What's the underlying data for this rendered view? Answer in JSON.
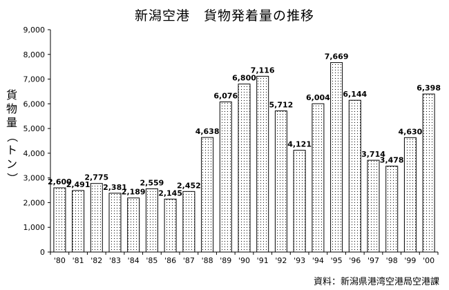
{
  "chart_data": {
    "type": "bar",
    "title": "新潟空港　貨物発着量の推移",
    "ylabel": "貨物量（トン）",
    "ylim": [
      0,
      9000
    ],
    "yticks": [
      "0",
      "1,000",
      "2,000",
      "3,000",
      "4,000",
      "5,000",
      "6,000",
      "7,000",
      "8,000",
      "9,000"
    ],
    "ytick_values": [
      0,
      1000,
      2000,
      3000,
      4000,
      5000,
      6000,
      7000,
      8000,
      9000
    ],
    "grid": false,
    "legend": "none",
    "categories": [
      "'80",
      "'81",
      "'82",
      "'83",
      "'84",
      "'85",
      "'86",
      "'87",
      "'88",
      "'89",
      "'90",
      "'91",
      "'92",
      "'93",
      "'94",
      "'95",
      "'96",
      "'97",
      "'98",
      "'99",
      "'00"
    ],
    "values": [
      2600,
      2491,
      2775,
      2381,
      2189,
      2559,
      2145,
      2452,
      4638,
      6076,
      6800,
      7116,
      5712,
      4121,
      6004,
      7669,
      6144,
      3714,
      3478,
      4630,
      6398
    ],
    "data_labels": [
      "2,600",
      "2,491",
      "2,775",
      "2,381",
      "2,189",
      "2,559",
      "2,145",
      "2,452",
      "4,638",
      "6,076",
      "6,800",
      "7,116",
      "5,712",
      "4,121",
      "6,004",
      "7,669",
      "6,144",
      "3,714",
      "3,478",
      "4,630",
      "6,398"
    ],
    "source": "資料：新潟県港湾空港局空港課",
    "colors": {
      "bar_fill": "#ffffff",
      "bar_dots": "#000000",
      "bar_stroke": "#000000",
      "axis": "#000000"
    }
  }
}
